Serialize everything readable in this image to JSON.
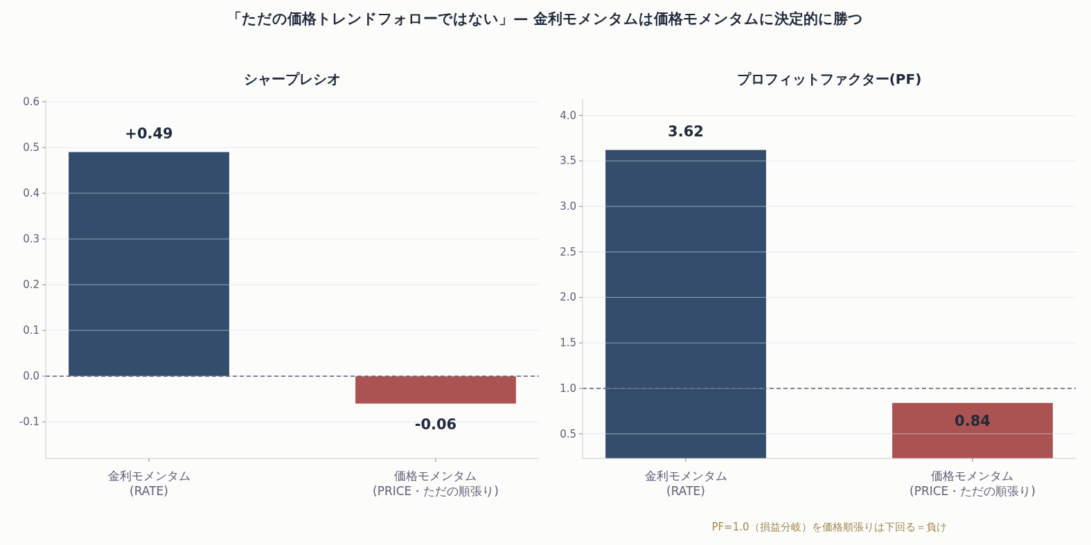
{
  "chart_data": [
    {
      "type": "bar",
      "title": "シャープレシオ",
      "annotations": [
        "「ただの価格トレンドフォローではない」— 金利モメンタムは価格モメンタムに決定的に勝つ"
      ],
      "categories": [
        "金利モメンタム\n(RATE)",
        "価格モメンタム\n(PRICE・ただの順張り)"
      ],
      "values": [
        0.49,
        -0.06
      ],
      "colors": [
        "#344d6d",
        "#ab5352"
      ],
      "value_labels": [
        "+0.49",
        "-0.06"
      ],
      "ylim": [
        -0.18,
        0.606
      ],
      "yticks": [
        {
          "value": -0.1,
          "label": "-0.1"
        },
        {
          "value": 0,
          "label": "0.0"
        },
        {
          "value": 0.1,
          "label": "0.1"
        },
        {
          "value": 0.2,
          "label": "0.2"
        },
        {
          "value": 0.3,
          "label": "0.3"
        },
        {
          "value": 0.4,
          "label": "0.4"
        },
        {
          "value": 0.5,
          "label": "0.5"
        },
        {
          "value": 0.6,
          "label": "0.6"
        }
      ],
      "grid": "y",
      "ref_lines": [
        {
          "axis": "y",
          "value": 0,
          "color": "#5a5f75",
          "line_style": "dashed"
        }
      ]
    },
    {
      "type": "bar",
      "title": "プロフィットファクター(PF)",
      "annotations": [
        "PF=1.0（損益分岐）を価格順張りは下回る＝負け"
      ],
      "categories": [
        "金利モメンタム\n(RATE)",
        "価格モメンタム\n(PRICE・ただの順張り)"
      ],
      "values": [
        3.62,
        0.84
      ],
      "colors": [
        "#344d6d",
        "#ab5352"
      ],
      "data_labels": true,
      "ylim": [
        0.23,
        4.18
      ],
      "yticks": [
        {
          "value": 0.5,
          "label": "0.5"
        },
        {
          "value": 1,
          "label": "1.0"
        },
        {
          "value": 1.5,
          "label": "1.5"
        },
        {
          "value": 2,
          "label": "2.0"
        },
        {
          "value": 2.5,
          "label": "2.5"
        },
        {
          "value": 3,
          "label": "3.0"
        },
        {
          "value": 3.5,
          "label": "3.5"
        },
        {
          "value": 4,
          "label": "4.0"
        }
      ],
      "grid": "y",
      "ref_lines": [
        {
          "axis": "y",
          "value": 1,
          "color": "#5a5f75",
          "line_style": "dashed"
        }
      ]
    }
  ]
}
